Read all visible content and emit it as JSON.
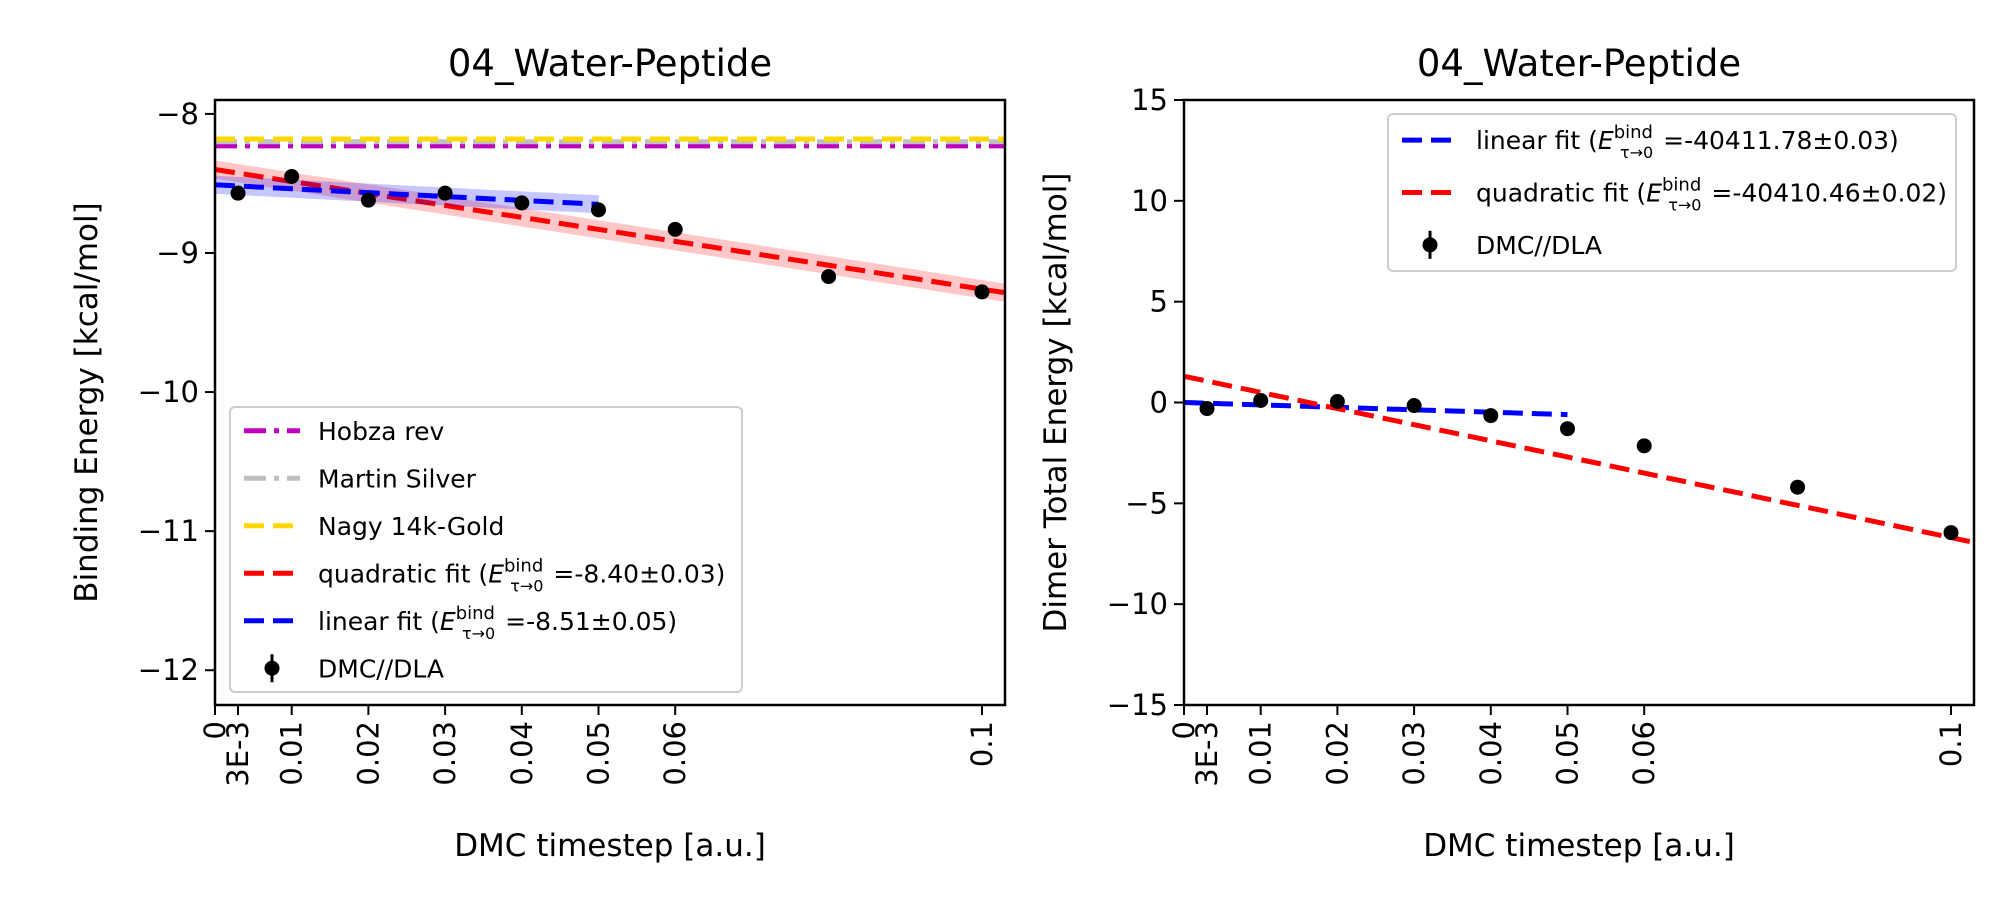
{
  "chart_data": [
    {
      "type": "scatter",
      "title": "04_Water-Peptide",
      "xlabel": "DMC timestep [a.u.]",
      "ylabel": "Binding Energy [kcal/mol]",
      "xlim": [
        0,
        0.103
      ],
      "ylim": [
        -12.25,
        -7.9
      ],
      "xticks": [
        0,
        0.003,
        0.01,
        0.02,
        0.03,
        0.04,
        0.05,
        0.06,
        0.1
      ],
      "xtick_labels": [
        "0",
        "3E-3",
        "0.01",
        "0.02",
        "0.03",
        "0.04",
        "0.05",
        "0.06",
        "0.1"
      ],
      "yticks": [
        -12,
        -11,
        -10,
        -9,
        -8
      ],
      "ytick_labels": [
        "−12",
        "−11",
        "−10",
        "−9",
        "−8"
      ],
      "grid": false,
      "legend_position": "lower-left",
      "reference_lines": [
        {
          "name": "Hobza rev",
          "y": -8.23,
          "color": "#bf00bf",
          "style": "dashdot"
        },
        {
          "name": "Martin Silver",
          "y": -8.2,
          "color": "#bfbfbf",
          "style": "dashdot"
        },
        {
          "name": "Nagy 14k-Gold",
          "y": -8.18,
          "color": "#ffd700",
          "style": "dashed"
        }
      ],
      "fits": [
        {
          "name": "quadratic fit",
          "label_prefix": "quadratic fit (",
          "label_suffix": " =-8.40±0.03)",
          "color": "#ff0000",
          "x_range": [
            0,
            0.103
          ],
          "coeffs": [
            -8.4,
            -8.6,
            0
          ]
        },
        {
          "name": "linear fit",
          "label_prefix": "linear fit (",
          "label_suffix": " =-8.51±0.05)",
          "color": "#0000ff",
          "x_range": [
            0,
            0.05
          ],
          "coeffs": [
            -8.51,
            -2.8,
            0
          ]
        }
      ],
      "series": [
        {
          "name": "DMC//DLA",
          "color": "#000000",
          "x": [
            0.003,
            0.01,
            0.02,
            0.03,
            0.04,
            0.05,
            0.06,
            0.08,
            0.1
          ],
          "y": [
            -8.57,
            -8.45,
            -8.62,
            -8.57,
            -8.64,
            -8.69,
            -8.83,
            -9.17,
            -9.28
          ],
          "yerr": [
            0.05,
            0.04,
            0.05,
            0.03,
            0.03,
            0.03,
            0.03,
            0.03,
            0.03
          ]
        }
      ],
      "legend_order": [
        "Hobza rev",
        "Martin Silver",
        "Nagy 14k-Gold",
        "quadratic fit",
        "linear fit",
        "DMC//DLA"
      ]
    },
    {
      "type": "scatter",
      "title": "04_Water-Peptide",
      "xlabel": "DMC timestep [a.u.]",
      "ylabel": "Dimer Total Energy [kcal/mol]",
      "xlim": [
        0,
        0.103
      ],
      "ylim": [
        -15,
        15
      ],
      "xticks": [
        0,
        0.003,
        0.01,
        0.02,
        0.03,
        0.04,
        0.05,
        0.06,
        0.1
      ],
      "xtick_labels": [
        "0",
        "3E-3",
        "0.01",
        "0.02",
        "0.03",
        "0.04",
        "0.05",
        "0.06",
        "0.1"
      ],
      "yticks": [
        -15,
        -10,
        -5,
        0,
        5,
        10,
        15
      ],
      "ytick_labels": [
        "−15",
        "−10",
        "−5",
        "0",
        "5",
        "10",
        "15"
      ],
      "grid": false,
      "legend_position": "upper-right",
      "fits": [
        {
          "name": "linear fit",
          "label_prefix": "linear fit (",
          "label_suffix": " =-40411.78±0.03)",
          "color": "#0000ff",
          "x_range": [
            0,
            0.05
          ],
          "coeffs": [
            0.0,
            -12.0,
            0
          ]
        },
        {
          "name": "quadratic fit",
          "label_prefix": "quadratic fit (",
          "label_suffix": " =-40410.46±0.02)",
          "color": "#ff0000",
          "x_range": [
            0,
            0.103
          ],
          "coeffs": [
            1.3,
            -80.0,
            0
          ]
        }
      ],
      "series": [
        {
          "name": "DMC//DLA",
          "color": "#000000",
          "x": [
            0.003,
            0.01,
            0.02,
            0.03,
            0.04,
            0.05,
            0.06,
            0.08,
            0.1
          ],
          "y": [
            -0.3,
            0.1,
            0.05,
            -0.15,
            -0.65,
            -1.3,
            -2.15,
            -4.2,
            -6.45
          ],
          "yerr": [
            0.06,
            0.06,
            0.06,
            0.06,
            0.06,
            0.06,
            0.06,
            0.06,
            0.06
          ]
        }
      ],
      "legend_order": [
        "linear fit",
        "quadratic fit",
        "DMC//DLA"
      ]
    }
  ],
  "legend_math": {
    "base": "E",
    "superscript": "bind",
    "subscript": "τ→0"
  }
}
